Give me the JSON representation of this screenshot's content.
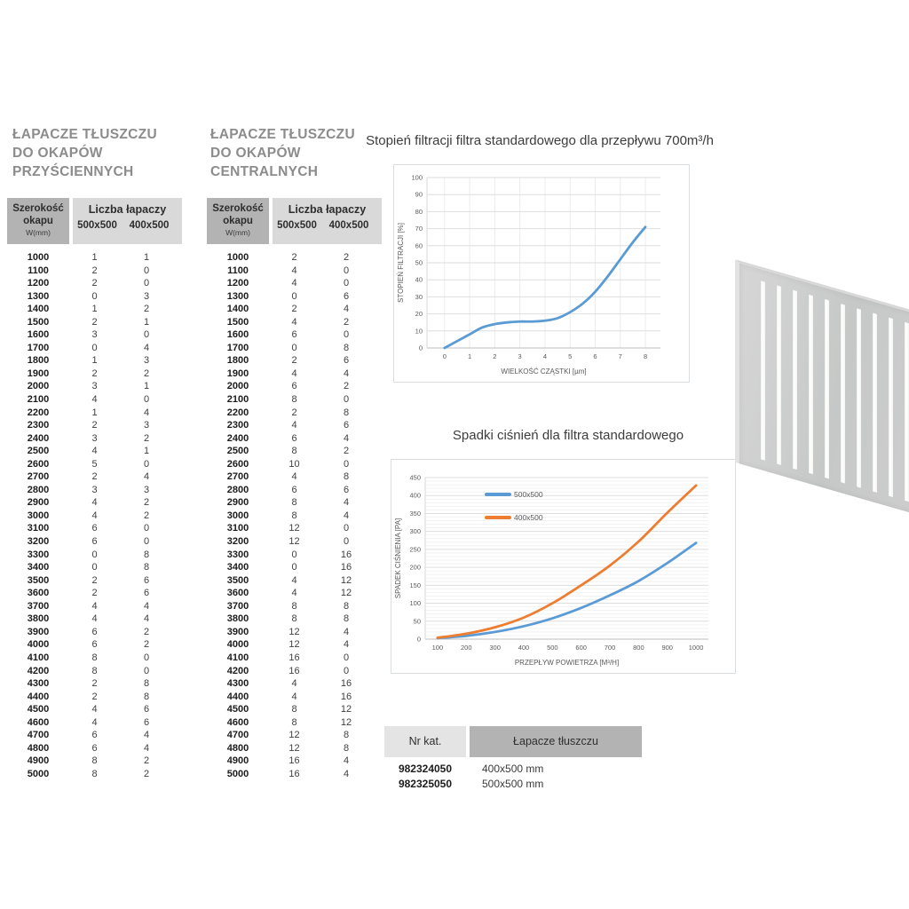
{
  "section_wall": {
    "title": "ŁAPACZE TŁUSZCZU DO OKAPÓW PRZYŚCIENNYCH",
    "header": {
      "width_label": "Szerokość okapu",
      "width_unit": "W(mm)",
      "group_label": "Liczba łapaczy",
      "size_a": "500x500",
      "size_b": "400x500"
    },
    "rows": [
      [
        1000,
        1,
        1
      ],
      [
        1100,
        2,
        0
      ],
      [
        1200,
        2,
        0
      ],
      [
        1300,
        0,
        3
      ],
      [
        1400,
        1,
        2
      ],
      [
        1500,
        2,
        1
      ],
      [
        1600,
        3,
        0
      ],
      [
        1700,
        0,
        4
      ],
      [
        1800,
        1,
        3
      ],
      [
        1900,
        2,
        2
      ],
      [
        2000,
        3,
        1
      ],
      [
        2100,
        4,
        0
      ],
      [
        2200,
        1,
        4
      ],
      [
        2300,
        2,
        3
      ],
      [
        2400,
        3,
        2
      ],
      [
        2500,
        4,
        1
      ],
      [
        2600,
        5,
        0
      ],
      [
        2700,
        2,
        4
      ],
      [
        2800,
        3,
        3
      ],
      [
        2900,
        4,
        2
      ],
      [
        3000,
        4,
        2
      ],
      [
        3100,
        6,
        0
      ],
      [
        3200,
        6,
        0
      ],
      [
        3300,
        0,
        8
      ],
      [
        3400,
        0,
        8
      ],
      [
        3500,
        2,
        6
      ],
      [
        3600,
        2,
        6
      ],
      [
        3700,
        4,
        4
      ],
      [
        3800,
        4,
        4
      ],
      [
        3900,
        6,
        2
      ],
      [
        4000,
        6,
        2
      ],
      [
        4100,
        8,
        0
      ],
      [
        4200,
        8,
        0
      ],
      [
        4300,
        2,
        8
      ],
      [
        4400,
        2,
        8
      ],
      [
        4500,
        4,
        6
      ],
      [
        4600,
        4,
        6
      ],
      [
        4700,
        6,
        4
      ],
      [
        4800,
        6,
        4
      ],
      [
        4900,
        8,
        2
      ],
      [
        5000,
        8,
        2
      ]
    ]
  },
  "section_central": {
    "title": "ŁAPACZE TŁUSZCZU DO OKAPÓW CENTRALNYCH",
    "header": {
      "width_label": "Szerokość okapu",
      "width_unit": "W(mm)",
      "group_label": "Liczba łapaczy",
      "size_a": "500x500",
      "size_b": "400x500"
    },
    "rows": [
      [
        1000,
        2,
        2
      ],
      [
        1100,
        4,
        0
      ],
      [
        1200,
        4,
        0
      ],
      [
        1300,
        0,
        6
      ],
      [
        1400,
        2,
        4
      ],
      [
        1500,
        4,
        2
      ],
      [
        1600,
        6,
        0
      ],
      [
        1700,
        0,
        8
      ],
      [
        1800,
        2,
        6
      ],
      [
        1900,
        4,
        4
      ],
      [
        2000,
        6,
        2
      ],
      [
        2100,
        8,
        0
      ],
      [
        2200,
        2,
        8
      ],
      [
        2300,
        4,
        6
      ],
      [
        2400,
        6,
        4
      ],
      [
        2500,
        8,
        2
      ],
      [
        2600,
        10,
        0
      ],
      [
        2700,
        4,
        8
      ],
      [
        2800,
        6,
        6
      ],
      [
        2900,
        8,
        4
      ],
      [
        3000,
        8,
        4
      ],
      [
        3100,
        12,
        0
      ],
      [
        3200,
        12,
        0
      ],
      [
        3300,
        0,
        16
      ],
      [
        3400,
        0,
        16
      ],
      [
        3500,
        4,
        12
      ],
      [
        3600,
        4,
        12
      ],
      [
        3700,
        8,
        8
      ],
      [
        3800,
        8,
        8
      ],
      [
        3900,
        12,
        4
      ],
      [
        4000,
        12,
        4
      ],
      [
        4100,
        16,
        0
      ],
      [
        4200,
        16,
        0
      ],
      [
        4300,
        4,
        16
      ],
      [
        4400,
        4,
        16
      ],
      [
        4500,
        8,
        12
      ],
      [
        4600,
        8,
        12
      ],
      [
        4700,
        12,
        8
      ],
      [
        4800,
        12,
        8
      ],
      [
        4900,
        16,
        4
      ],
      [
        5000,
        16,
        4
      ]
    ]
  },
  "chart_data": [
    {
      "type": "line",
      "title": "Stopień filtracji filtra standardowego dla przepływu 700m³/h",
      "xlabel": "WIELKOŚĆ CZĄSTKI [µm]",
      "ylabel": "STOPIEŃ FILTRACJI [%]",
      "xlim": [
        -0.7,
        8.6
      ],
      "ylim": [
        0,
        100
      ],
      "xticks": [
        0,
        1,
        2,
        3,
        4,
        5,
        6,
        7,
        8
      ],
      "yticks": [
        0,
        10,
        20,
        30,
        40,
        50,
        60,
        70,
        80,
        90,
        100
      ],
      "xgrid": true,
      "grid": true,
      "legend_position": "none",
      "series": [
        {
          "color": "#5B9BD5",
          "x": [
            0,
            0.5,
            1,
            1.5,
            2,
            2.5,
            3,
            3.5,
            4,
            4.5,
            5,
            5.5,
            6,
            6.5,
            7,
            7.5,
            8
          ],
          "y": [
            0,
            4,
            8,
            12,
            14,
            15,
            15.5,
            15.5,
            16,
            17.5,
            21,
            26,
            33,
            42,
            52,
            62,
            71
          ]
        }
      ]
    },
    {
      "type": "line",
      "title": "Spadki ciśnień dla filtra standardowego",
      "xlabel": "PRZEPŁYW POWIETRZA [M³/H]",
      "ylabel": "SPADEK CIŚNIENIA [PA]",
      "xlim": [
        57,
        1043
      ],
      "ylim": [
        0,
        450
      ],
      "xticks": [
        100,
        200,
        300,
        400,
        500,
        600,
        700,
        800,
        900,
        1000
      ],
      "yticks": [
        0,
        50,
        100,
        150,
        200,
        250,
        300,
        350,
        400,
        450
      ],
      "ytick_minor": 10,
      "xgrid": false,
      "grid": true,
      "legend_position": "top-left",
      "series": [
        {
          "name": "500x500",
          "color": "#5B9BD5",
          "x": [
            100,
            200,
            300,
            400,
            500,
            600,
            700,
            800,
            900,
            1000
          ],
          "y": [
            3,
            9,
            20,
            36,
            58,
            87,
            122,
            162,
            212,
            268
          ]
        },
        {
          "name": "400x500",
          "color": "#ED7D31",
          "x": [
            100,
            200,
            300,
            400,
            500,
            600,
            700,
            800,
            900,
            1000
          ],
          "y": [
            4,
            15,
            33,
            60,
            100,
            150,
            205,
            272,
            352,
            428
          ]
        }
      ]
    }
  ],
  "order_table": {
    "col_nr": "Nr kat.",
    "col_product": "Łapacze tłuszczu",
    "rows": [
      [
        "982324050",
        "400x500 mm"
      ],
      [
        "982325050",
        "500x500 mm"
      ]
    ]
  }
}
